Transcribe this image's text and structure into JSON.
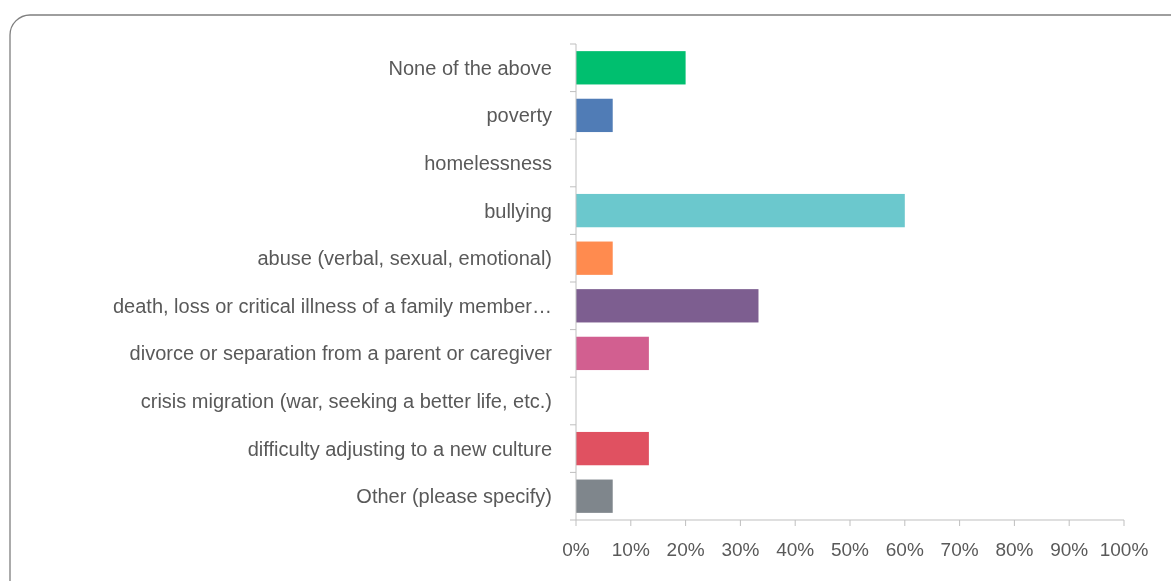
{
  "chart_data": {
    "type": "bar",
    "orientation": "horizontal",
    "categories": [
      "None of the above",
      "poverty",
      "homelessness",
      "bullying",
      "abuse (verbal, sexual, emotional)",
      "death, loss or critical illness of a family member…",
      "divorce or separation from a parent or caregiver",
      "crisis migration (war, seeking a better life, etc.)",
      "difficulty adjusting to a new culture",
      "Other (please specify)"
    ],
    "values": [
      20,
      6.7,
      0,
      60,
      6.7,
      33.3,
      13.3,
      0,
      13.3,
      6.7
    ],
    "colors": [
      "#00bf6f",
      "#507cb6",
      "#f9be00",
      "#6bc8cd",
      "#ff8b4f",
      "#7d5e90",
      "#d25f90",
      "#dbe300",
      "#e05161",
      "#7f868c"
    ],
    "xlim": [
      0,
      100
    ],
    "xticks": [
      {
        "value": 0,
        "label": "0%"
      },
      {
        "value": 10,
        "label": "10%"
      },
      {
        "value": 20,
        "label": "20%"
      },
      {
        "value": 30,
        "label": "30%"
      },
      {
        "value": 40,
        "label": "40%"
      },
      {
        "value": 50,
        "label": "50%"
      },
      {
        "value": 60,
        "label": "60%"
      },
      {
        "value": 70,
        "label": "70%"
      },
      {
        "value": 80,
        "label": "80%"
      },
      {
        "value": 90,
        "label": "90%"
      },
      {
        "value": 100,
        "label": "100%"
      }
    ],
    "grid": false
  }
}
